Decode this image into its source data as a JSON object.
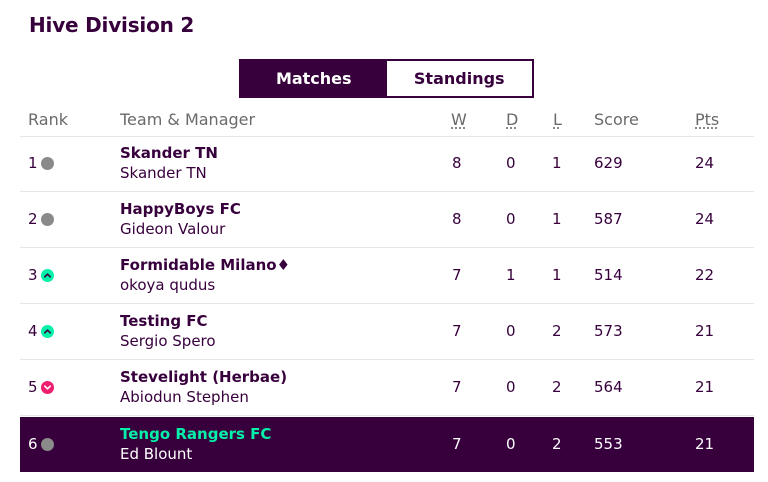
{
  "league_title": "Hive Division 2",
  "tabs": [
    {
      "label": "Matches",
      "active": true
    },
    {
      "label": "Standings",
      "active": false
    }
  ],
  "columns": {
    "rank": "Rank",
    "team": "Team & Manager",
    "w": "W",
    "d": "D",
    "l": "L",
    "score": "Score",
    "pts": "Pts"
  },
  "rows": [
    {
      "rank": "1",
      "movement": "same",
      "team": "Skander TN",
      "manager": "Skander TN",
      "w": "8",
      "d": "0",
      "l": "1",
      "score": "629",
      "pts": "24"
    },
    {
      "rank": "2",
      "movement": "same",
      "team": "HappyBoys FC",
      "manager": "Gideon Valour",
      "w": "8",
      "d": "0",
      "l": "1",
      "score": "587",
      "pts": "24"
    },
    {
      "rank": "3",
      "movement": "up",
      "team": "Formidable Milano♦",
      "manager": "okoya qudus",
      "w": "7",
      "d": "1",
      "l": "1",
      "score": "514",
      "pts": "22"
    },
    {
      "rank": "4",
      "movement": "up",
      "team": "Testing FC",
      "manager": "Sergio Spero",
      "w": "7",
      "d": "0",
      "l": "2",
      "score": "573",
      "pts": "21"
    },
    {
      "rank": "5",
      "movement": "down",
      "team": "Stevelight (Herbae)",
      "manager": "Abiodun Stephen",
      "w": "7",
      "d": "0",
      "l": "2",
      "score": "564",
      "pts": "21"
    },
    {
      "rank": "6",
      "movement": "same",
      "team": "Tengo Rangers FC",
      "manager": "Ed Blount",
      "w": "7",
      "d": "0",
      "l": "2",
      "score": "553",
      "pts": "21",
      "highlight": true
    }
  ],
  "colors": {
    "brand": "#37003c",
    "highlight_team": "#05f0a8",
    "up": "#05f0a8",
    "down": "#f01e6e",
    "same": "#8a8a8a"
  },
  "icons": {
    "same": "neutral-dot-icon",
    "up": "chevron-up-icon",
    "down": "chevron-down-icon"
  }
}
